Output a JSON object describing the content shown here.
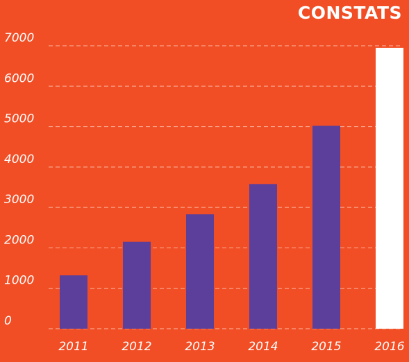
{
  "chart_data": {
    "type": "bar",
    "title": "CONSTATS",
    "xlabel": "",
    "ylabel": "",
    "categories": [
      "2011",
      "2012",
      "2013",
      "2014",
      "2015",
      "2016"
    ],
    "values": [
      1320,
      2150,
      2830,
      3580,
      5020,
      6950
    ],
    "ylim": [
      0,
      7000
    ],
    "yticks": [
      "0",
      "1000",
      "2000",
      "3000",
      "4000",
      "5000",
      "6000",
      "7000"
    ],
    "grid": true,
    "colors": {
      "background": "#f24e25",
      "bar": "#5b3f9b",
      "highlight_bar": "#ffffff",
      "gridline": "#f7a58c",
      "text": "#ffffff"
    },
    "highlight_index": 5
  }
}
